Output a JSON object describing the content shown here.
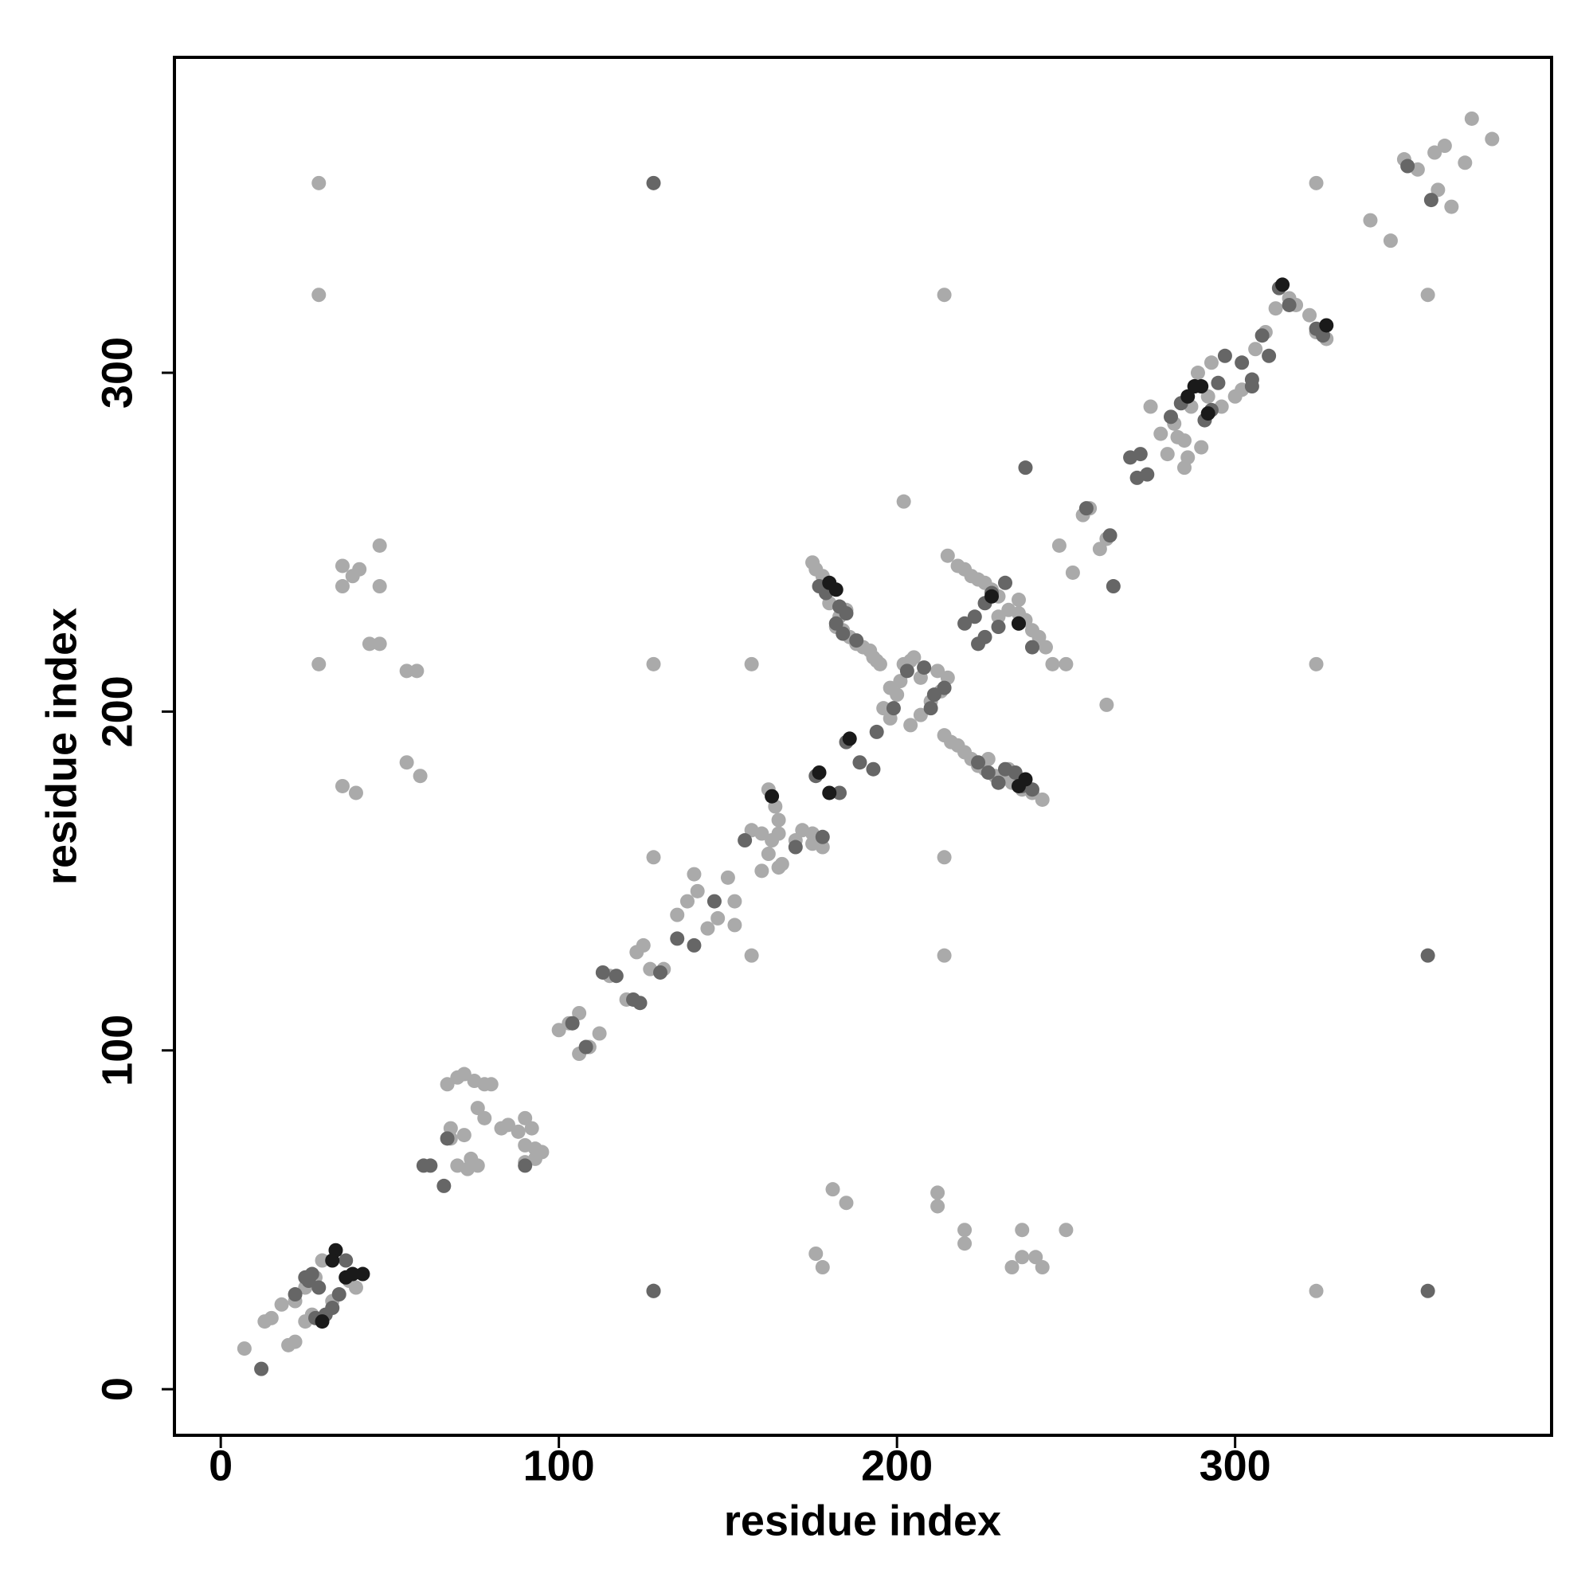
{
  "chart_data": {
    "type": "scatter",
    "x_label": "residue index",
    "y_label": "residue index",
    "xlim": [
      -13.7,
      393.6
    ],
    "ylim": [
      -13.6,
      393.1
    ],
    "xticks": [
      0,
      100,
      200,
      300
    ],
    "yticks": [
      0,
      100,
      200,
      300
    ],
    "grid": false,
    "series": [
      {
        "color": "#aaaaaa",
        "x": [
          370,
          376,
          350,
          354,
          359,
          362,
          368,
          360,
          364,
          340,
          346,
          29,
          29,
          324,
          214,
          357,
          29,
          128,
          157,
          324,
          214,
          128,
          157,
          214,
          324,
          202,
          262,
          181,
          185,
          212,
          212,
          220,
          220,
          237,
          250,
          237,
          241,
          243,
          234,
          176,
          178,
          36,
          39,
          36,
          41,
          47,
          47,
          44,
          47,
          55,
          58,
          55,
          59,
          36,
          40,
          7,
          13,
          15,
          20,
          22,
          25,
          28,
          30,
          22,
          27,
          33,
          40,
          38,
          18,
          25,
          67,
          70,
          72,
          75,
          78,
          80,
          76,
          78,
          68,
          68,
          72,
          70,
          73,
          76,
          74,
          83,
          85,
          88,
          90,
          92,
          90,
          93,
          95,
          90,
          93,
          100,
          103,
          106,
          106,
          112,
          109,
          115,
          120,
          123,
          125,
          127,
          131,
          135,
          138,
          141,
          140,
          144,
          147,
          150,
          152,
          152,
          157,
          160,
          162,
          165,
          162,
          164,
          165,
          163,
          166,
          170,
          172,
          175,
          175,
          178,
          165,
          160,
          175,
          176,
          178,
          180,
          180,
          182,
          184,
          186,
          188,
          190,
          192,
          193,
          194,
          195,
          185,
          183,
          198,
          201,
          202,
          205,
          200,
          196,
          198,
          204,
          207,
          210,
          213,
          212,
          215,
          207,
          204,
          214,
          216,
          218,
          220,
          222,
          224,
          226,
          229,
          231,
          234,
          237,
          240,
          243,
          233,
          227,
          215,
          218,
          220,
          222,
          224,
          226,
          228,
          230,
          233,
          236,
          238,
          240,
          242,
          244,
          246,
          250,
          252,
          248,
          236,
          230,
          255,
          257,
          260,
          262,
          278,
          282,
          285,
          287,
          290,
          292,
          285,
          289,
          293,
          296,
          300,
          302,
          306,
          309,
          312,
          316,
          318,
          322,
          324,
          327,
          280,
          283,
          275,
          286
        ],
        "y": [
          375,
          369,
          363,
          360,
          365,
          367,
          362,
          354,
          349,
          345,
          339,
          356,
          323,
          356,
          323,
          323,
          214,
          214,
          214,
          214,
          157,
          157,
          128,
          128,
          29,
          262,
          202,
          59,
          55,
          58,
          54,
          47,
          43,
          47,
          47,
          39,
          39,
          36,
          36,
          40,
          36,
          243,
          240,
          237,
          242,
          249,
          237,
          220,
          220,
          212,
          212,
          185,
          181,
          178,
          176,
          12,
          20,
          21,
          13,
          14,
          30,
          33,
          38,
          26,
          22,
          26,
          30,
          32,
          25,
          20,
          90,
          92,
          93,
          91,
          90,
          90,
          83,
          80,
          74,
          77,
          75,
          66,
          65,
          66,
          68,
          77,
          78,
          76,
          80,
          77,
          72,
          71,
          70,
          67,
          68,
          106,
          108,
          111,
          99,
          105,
          101,
          122,
          115,
          129,
          131,
          124,
          124,
          140,
          144,
          147,
          152,
          136,
          139,
          151,
          144,
          137,
          165,
          164,
          158,
          164,
          177,
          172,
          168,
          162,
          155,
          162,
          165,
          164,
          161,
          160,
          154,
          153,
          244,
          242,
          240,
          236,
          232,
          225,
          224,
          222,
          220,
          219,
          218,
          216,
          215,
          214,
          230,
          228,
          207,
          209,
          214,
          216,
          205,
          201,
          198,
          196,
          199,
          203,
          206,
          212,
          210,
          210,
          215,
          193,
          191,
          190,
          188,
          186,
          184,
          183,
          181,
          180,
          179,
          177,
          176,
          174,
          183,
          186,
          246,
          243,
          242,
          240,
          239,
          238,
          236,
          234,
          230,
          229,
          227,
          224,
          222,
          219,
          214,
          214,
          241,
          249,
          233,
          228,
          258,
          260,
          248,
          251,
          282,
          285,
          280,
          290,
          278,
          293,
          272,
          300,
          303,
          290,
          293,
          295,
          307,
          312,
          319,
          322,
          320,
          317,
          312,
          310,
          276,
          281,
          290,
          275
        ]
      },
      {
        "color": "#666666",
        "x": [
          128,
          128,
          357,
          128,
          357,
          238,
          264,
          25,
          27,
          28,
          31,
          33,
          22,
          29,
          37,
          12,
          35,
          26,
          60,
          66,
          62,
          67,
          90,
          104,
          108,
          113,
          117,
          122,
          124,
          130,
          135,
          140,
          146,
          155,
          178,
          176,
          183,
          185,
          189,
          193,
          170,
          177,
          179,
          183,
          182,
          185,
          184,
          188,
          194,
          203,
          208,
          211,
          214,
          210,
          199,
          224,
          227,
          232,
          235,
          237,
          240,
          230,
          220,
          223,
          226,
          228,
          232,
          224,
          226,
          236,
          240,
          230,
          256,
          263,
          269,
          272,
          271,
          274,
          281,
          284,
          288,
          291,
          293,
          295,
          297,
          302,
          305,
          305,
          308,
          310,
          313,
          316,
          324,
          326,
          351,
          358
        ],
        "y": [
          356,
          29,
          128,
          29,
          29,
          272,
          237,
          33,
          34,
          21,
          22,
          24,
          28,
          30,
          38,
          6,
          28,
          32,
          66,
          60,
          66,
          74,
          66,
          108,
          101,
          123,
          122,
          115,
          114,
          123,
          133,
          131,
          144,
          162,
          163,
          181,
          176,
          191,
          185,
          183,
          160,
          237,
          235,
          231,
          226,
          229,
          223,
          221,
          194,
          212,
          213,
          205,
          207,
          201,
          201,
          185,
          182,
          183,
          182,
          178,
          177,
          179,
          226,
          228,
          232,
          235,
          238,
          220,
          222,
          226,
          219,
          225,
          260,
          252,
          275,
          276,
          269,
          270,
          287,
          291,
          296,
          286,
          289,
          297,
          305,
          303,
          298,
          296,
          311,
          305,
          325,
          320,
          313,
          311,
          361,
          351
        ]
      },
      {
        "color": "#1a1a1a",
        "x": [
          34,
          33,
          37,
          39,
          42,
          30,
          163,
          177,
          180,
          186,
          180,
          182,
          238,
          236,
          228,
          236,
          286,
          290,
          292,
          314,
          327,
          288
        ],
        "y": [
          41,
          38,
          33,
          34,
          34,
          20,
          175,
          182,
          176,
          192,
          238,
          236,
          180,
          178,
          234,
          226,
          293,
          296,
          288,
          326,
          314,
          296
        ]
      }
    ]
  }
}
